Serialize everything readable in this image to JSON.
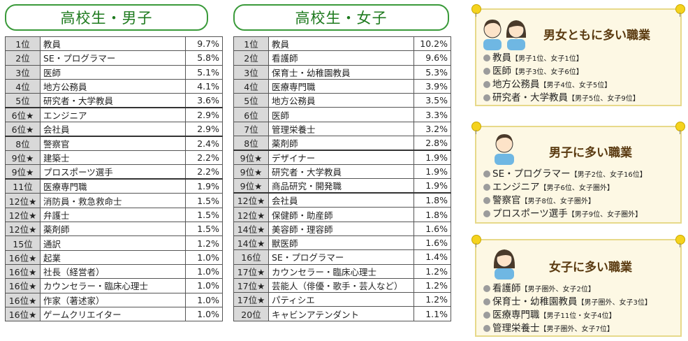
{
  "boys": {
    "title": "高校生・男子",
    "rows": [
      {
        "pos": "1位",
        "job": "教員",
        "pct": "9.7%"
      },
      {
        "pos": "2位",
        "job": "SE・プログラマー",
        "pct": "5.8%"
      },
      {
        "pos": "3位",
        "job": "医師",
        "pct": "5.1%"
      },
      {
        "pos": "4位",
        "job": "地方公務員",
        "pct": "4.1%"
      },
      {
        "pos": "5位",
        "job": "研究者・大学教員",
        "pct": "3.6%"
      },
      {
        "pos": "6位★",
        "job": "エンジニア",
        "pct": "2.9%"
      },
      {
        "pos": "6位★",
        "job": "会社員",
        "pct": "2.9%"
      },
      {
        "pos": "8位",
        "job": "警察官",
        "pct": "2.4%"
      },
      {
        "pos": "9位★",
        "job": "建築士",
        "pct": "2.2%"
      },
      {
        "pos": "9位★",
        "job": "プロスポーツ選手",
        "pct": "2.2%"
      },
      {
        "pos": "11位",
        "job": "医療専門職",
        "pct": "1.9%"
      },
      {
        "pos": "12位★",
        "job": "消防員・救急救命士",
        "pct": "1.5%"
      },
      {
        "pos": "12位★",
        "job": "弁護士",
        "pct": "1.5%"
      },
      {
        "pos": "12位★",
        "job": "薬剤師",
        "pct": "1.5%"
      },
      {
        "pos": "15位",
        "job": "通訳",
        "pct": "1.2%"
      },
      {
        "pos": "16位★",
        "job": "起業",
        "pct": "1.0%"
      },
      {
        "pos": "16位★",
        "job": "社長（経営者）",
        "pct": "1.0%"
      },
      {
        "pos": "16位★",
        "job": "カウンセラー・臨床心理士",
        "pct": "1.0%"
      },
      {
        "pos": "16位★",
        "job": "作家（著述家）",
        "pct": "1.0%"
      },
      {
        "pos": "16位★",
        "job": "ゲームクリエイター",
        "pct": "1.0%"
      }
    ]
  },
  "girls": {
    "title": "高校生・女子",
    "rows": [
      {
        "pos": "1位",
        "job": "教員",
        "pct": "10.2%"
      },
      {
        "pos": "2位",
        "job": "看護師",
        "pct": "9.6%"
      },
      {
        "pos": "3位",
        "job": "保育士・幼稚園教員",
        "pct": "5.3%"
      },
      {
        "pos": "4位",
        "job": "医療専門職",
        "pct": "3.9%"
      },
      {
        "pos": "5位",
        "job": "地方公務員",
        "pct": "3.5%"
      },
      {
        "pos": "6位",
        "job": "医師",
        "pct": "3.3%"
      },
      {
        "pos": "7位",
        "job": "管理栄養士",
        "pct": "3.2%"
      },
      {
        "pos": "8位",
        "job": "薬剤師",
        "pct": "2.8%"
      },
      {
        "pos": "9位★",
        "job": "デザイナー",
        "pct": "1.9%"
      },
      {
        "pos": "9位★",
        "job": "研究者・大学教員",
        "pct": "1.9%"
      },
      {
        "pos": "9位★",
        "job": "商品研究・開発職",
        "pct": "1.9%"
      },
      {
        "pos": "12位★",
        "job": "会社員",
        "pct": "1.8%"
      },
      {
        "pos": "12位★",
        "job": "保健師・助産師",
        "pct": "1.8%"
      },
      {
        "pos": "14位★",
        "job": "美容師・理容師",
        "pct": "1.6%"
      },
      {
        "pos": "14位★",
        "job": "獣医師",
        "pct": "1.6%"
      },
      {
        "pos": "16位",
        "job": "SE・プログラマー",
        "pct": "1.4%"
      },
      {
        "pos": "17位★",
        "job": "カウンセラー・臨床心理士",
        "pct": "1.2%"
      },
      {
        "pos": "17位★",
        "job": "芸能人（俳優・歌手・芸人など）",
        "pct": "1.2%"
      },
      {
        "pos": "17位★",
        "job": "パティシエ",
        "pct": "1.2%"
      },
      {
        "pos": "20位",
        "job": "キャビンアテンダント",
        "pct": "1.1%"
      }
    ]
  },
  "cards": [
    {
      "title": "男女ともに多い職業",
      "items": [
        {
          "job": "教員",
          "note": "【男子1位、女子1位】"
        },
        {
          "job": "医師",
          "note": "【男子3位、女子6位】"
        },
        {
          "job": "地方公務員",
          "note": "【男子4位、女子5位】"
        },
        {
          "job": "研究者・大学教員",
          "note": "【男子5位、女子9位】"
        }
      ]
    },
    {
      "title": "男子に多い職業",
      "items": [
        {
          "job": "SE・プログラマー",
          "note": "【男子2位、女子16位】"
        },
        {
          "job": "エンジニア",
          "note": "【男子6位、女子圏外】"
        },
        {
          "job": "警察官",
          "note": "【男子8位、女子圏外】"
        },
        {
          "job": "プロスポーツ選手",
          "note": "【男子9位、女子圏外】"
        }
      ]
    },
    {
      "title": "女子に多い職業",
      "items": [
        {
          "job": "看護師",
          "note": "【男子圏外、女子2位】"
        },
        {
          "job": "保育士・幼稚園教員",
          "note": "【男子圏外、女子3位】"
        },
        {
          "job": "医療専門職",
          "note": "【男子11位・女子4位】"
        },
        {
          "job": "管理栄養士",
          "note": "【男子圏外、女子7位】"
        }
      ]
    }
  ],
  "colors": {
    "accent": "#3a9a3a",
    "card_bg": "#fdf8e4",
    "card_border": "#e7d98a",
    "rank_bg": "#d9d9d9"
  }
}
